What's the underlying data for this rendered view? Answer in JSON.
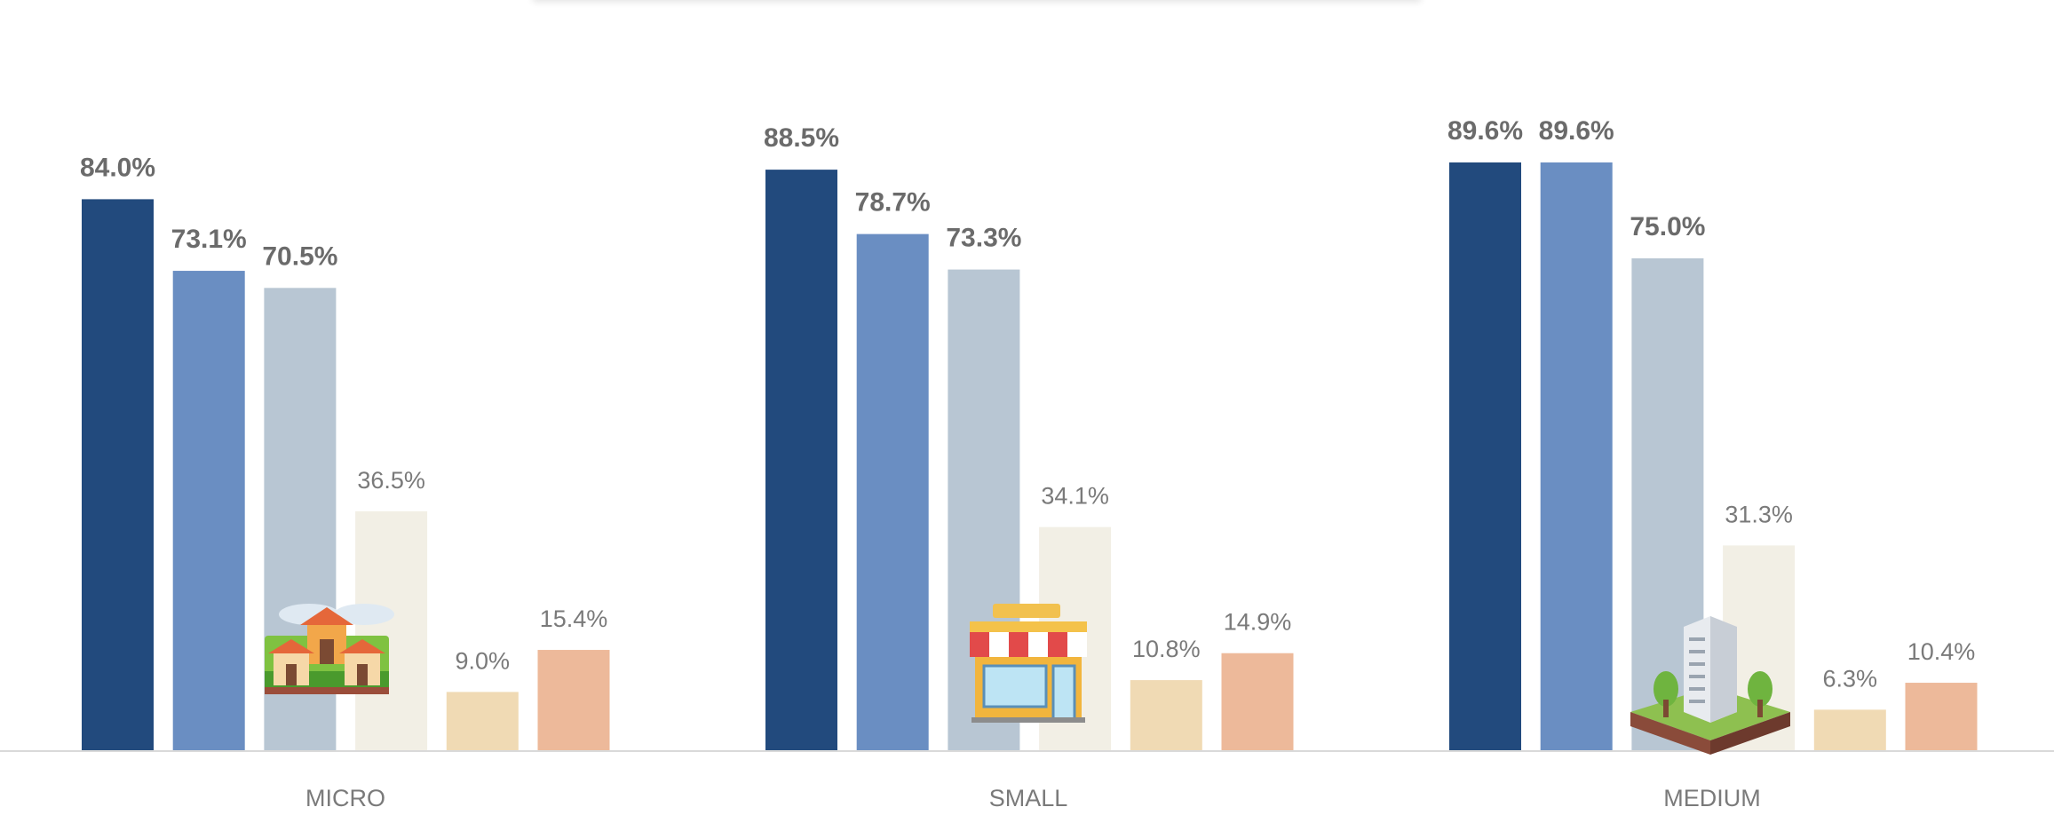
{
  "chart_data": {
    "type": "bar",
    "categories": [
      "MICRO",
      "SMALL",
      "MEDIUM"
    ],
    "series": [
      {
        "values": [
          84.0,
          88.5,
          89.6
        ],
        "color": "#224A7D",
        "label_style": "bold"
      },
      {
        "values": [
          73.1,
          78.7,
          89.6
        ],
        "color": "#6A8EC2",
        "label_style": "bold"
      },
      {
        "values": [
          70.5,
          73.3,
          75.0
        ],
        "color": "#B8C6D3",
        "label_style": "bold"
      },
      {
        "values": [
          36.5,
          34.1,
          31.3
        ],
        "color": "#F2EFE5",
        "label_style": "regular"
      },
      {
        "values": [
          9.0,
          10.8,
          6.3
        ],
        "color": "#F0DAB4",
        "label_style": "regular"
      },
      {
        "values": [
          15.4,
          14.9,
          10.4
        ],
        "color": "#EDB99A",
        "label_style": "regular"
      }
    ],
    "data_labels": [
      [
        "84.0%",
        "88.5%",
        "89.6%"
      ],
      [
        "73.1%",
        "78.7%",
        "89.6%"
      ],
      [
        "70.5%",
        "73.3%",
        "75.0%"
      ],
      [
        "36.5%",
        "34.1%",
        "31.3%"
      ],
      [
        "9.0%",
        "10.8%",
        "6.3%"
      ],
      [
        "15.4%",
        "14.9%",
        "10.4%"
      ]
    ],
    "ylim": [
      0,
      100
    ],
    "grid": false,
    "icons": [
      "village-houses-icon",
      "storefront-icon",
      "office-building-icon"
    ]
  }
}
